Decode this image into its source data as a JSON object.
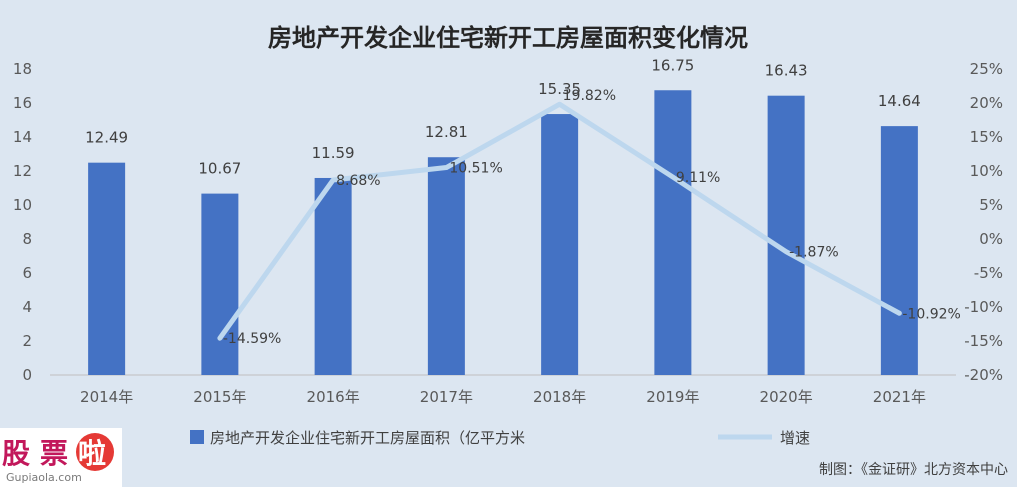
{
  "chart_data": {
    "type": "bar",
    "title": "房地产开发企业住宅新开工房屋面积变化情况",
    "categories": [
      "2014年",
      "2015年",
      "2016年",
      "2017年",
      "2018年",
      "2019年",
      "2020年",
      "2021年"
    ],
    "series": [
      {
        "name": "房地产开发企业住宅新开工房屋面积（亿平方米",
        "type": "bar",
        "axis": "left",
        "color": "#4472c4",
        "values": [
          12.49,
          10.67,
          11.59,
          12.81,
          15.35,
          16.75,
          16.43,
          14.64
        ],
        "labels": [
          "12.49",
          "10.67",
          "11.59",
          "12.81",
          "15.35",
          "16.75",
          "16.43",
          "14.64"
        ]
      },
      {
        "name": "增速",
        "type": "line",
        "axis": "right",
        "color": "#bdd7ee",
        "values": [
          null,
          -14.59,
          8.68,
          10.51,
          19.82,
          9.11,
          -1.87,
          -10.92
        ],
        "labels": [
          null,
          "-14.59%",
          "8.68%",
          "10.51%",
          "19.82%",
          "9.11%",
          "-1.87%",
          "-10.92%"
        ]
      }
    ],
    "ylim": [
      0,
      18
    ],
    "yticks": [
      "0",
      "2",
      "4",
      "6",
      "8",
      "10",
      "12",
      "14",
      "16",
      "18"
    ],
    "y2lim": [
      -20,
      25
    ],
    "y2ticks": [
      "-20%",
      "-15%",
      "-10%",
      "-5%",
      "0%",
      "5%",
      "10%",
      "15%",
      "20%",
      "25%"
    ],
    "grid": false,
    "legend_position": "bottom"
  },
  "credit": "制图：《金证研》北方资本中心",
  "watermark": {
    "chars": [
      "股",
      "票",
      "啦"
    ],
    "url": "Gupiaola.com"
  }
}
